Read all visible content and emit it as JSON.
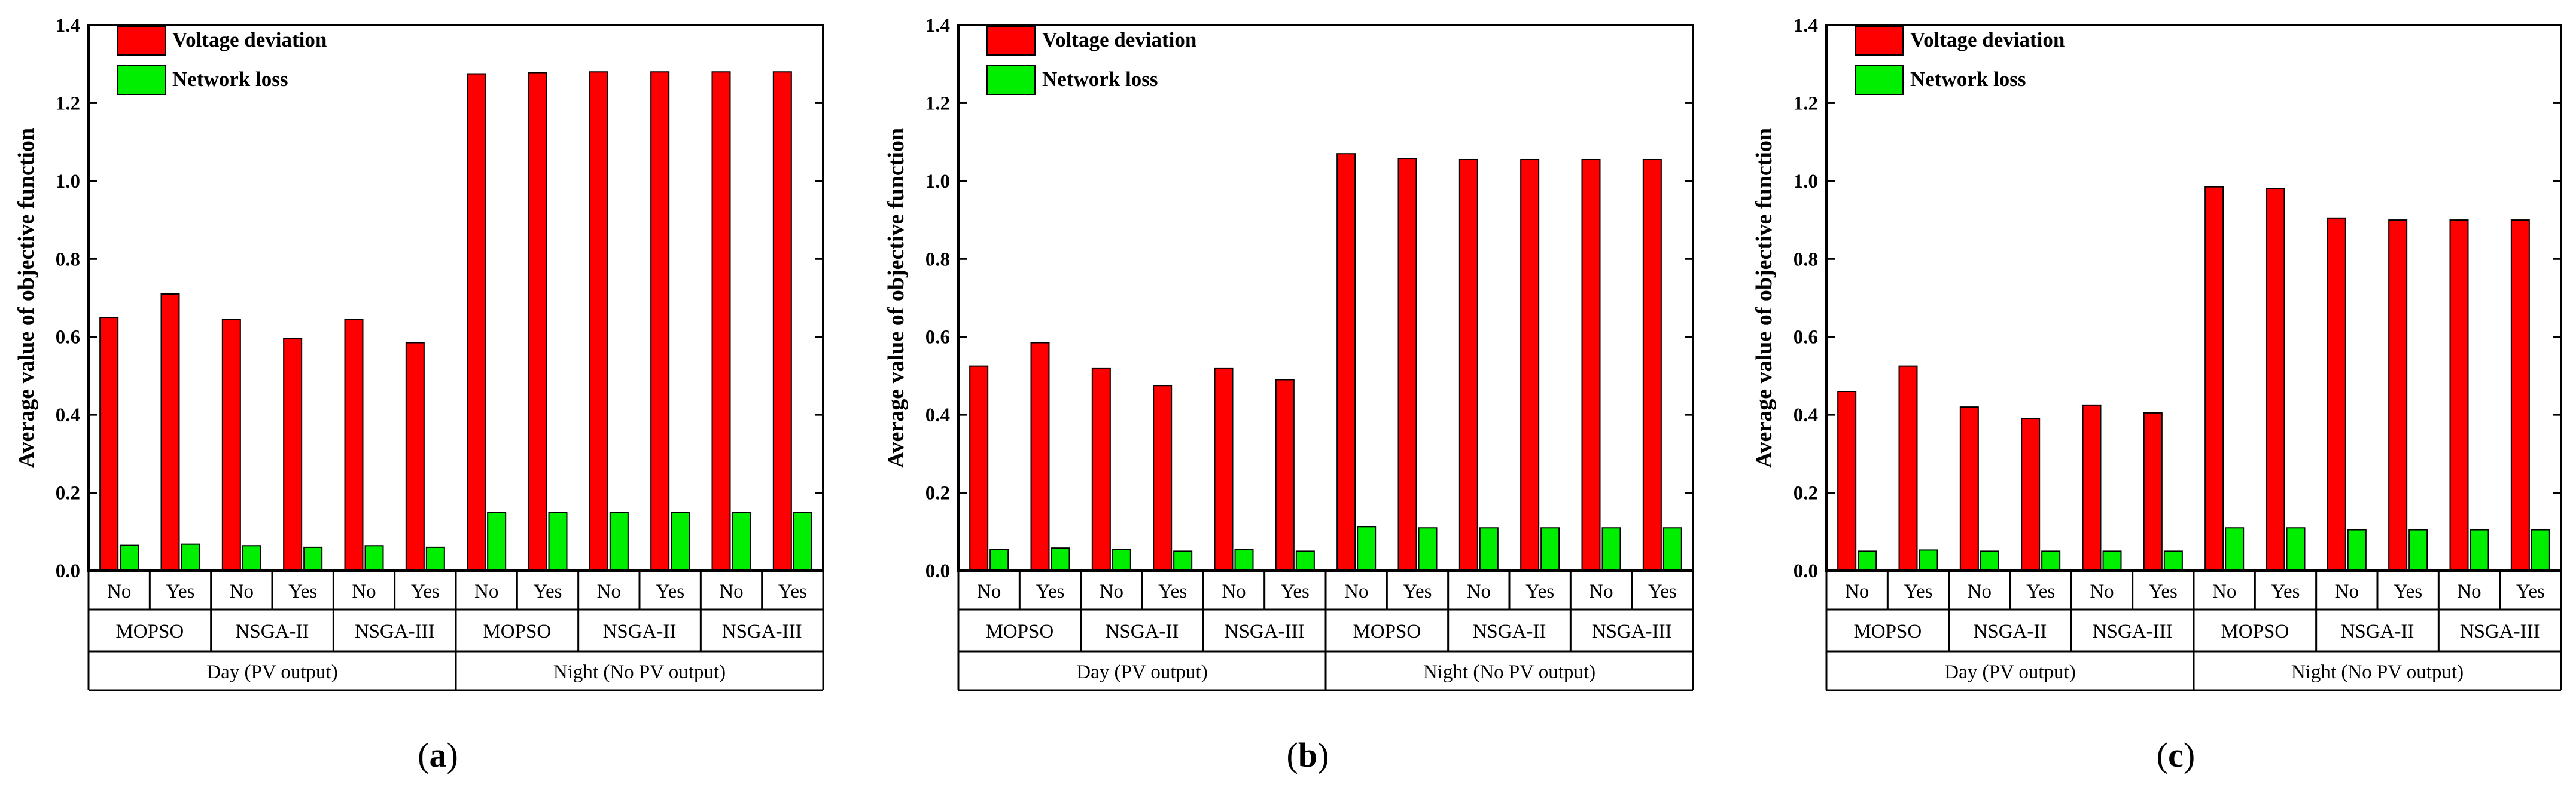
{
  "chart_data": [
    {
      "panel": "a",
      "type": "bar",
      "caption": "a",
      "ylabel": "Average value of objective function",
      "ylim": [
        0,
        1.4
      ],
      "yticks": [
        "0.0",
        "0.2",
        "0.4",
        "0.6",
        "0.8",
        "1.0",
        "1.2",
        "1.4"
      ],
      "categories_level1": [
        "No",
        "Yes",
        "No",
        "Yes",
        "No",
        "Yes",
        "No",
        "Yes",
        "No",
        "Yes",
        "No",
        "Yes"
      ],
      "categories_level2": [
        "MOPSO",
        "NSGA-II",
        "NSGA-III",
        "MOPSO",
        "NSGA-II",
        "NSGA-III"
      ],
      "categories_level3": [
        "Day (PV output)",
        "Night (No PV output)"
      ],
      "series": [
        {
          "name": "Voltage deviation",
          "color": "#ff0000",
          "values": [
            0.65,
            0.71,
            0.645,
            0.595,
            0.645,
            0.585,
            1.275,
            1.278,
            1.28,
            1.28,
            1.28,
            1.28
          ]
        },
        {
          "name": "Network loss",
          "color": "#00ee00",
          "values": [
            0.065,
            0.068,
            0.064,
            0.06,
            0.064,
            0.06,
            0.15,
            0.15,
            0.15,
            0.15,
            0.15,
            0.15
          ]
        }
      ]
    },
    {
      "panel": "b",
      "type": "bar",
      "caption": "b",
      "ylabel": "Average value of objective function",
      "ylim": [
        0,
        1.4
      ],
      "yticks": [
        "0.0",
        "0.2",
        "0.4",
        "0.6",
        "0.8",
        "1.0",
        "1.2",
        "1.4"
      ],
      "categories_level1": [
        "No",
        "Yes",
        "No",
        "Yes",
        "No",
        "Yes",
        "No",
        "Yes",
        "No",
        "Yes",
        "No",
        "Yes"
      ],
      "categories_level2": [
        "MOPSO",
        "NSGA-II",
        "NSGA-III",
        "MOPSO",
        "NSGA-II",
        "NSGA-III"
      ],
      "categories_level3": [
        "Day (PV output)",
        "Night (No PV output)"
      ],
      "series": [
        {
          "name": "Voltage deviation",
          "color": "#ff0000",
          "values": [
            0.525,
            0.585,
            0.52,
            0.475,
            0.52,
            0.49,
            1.07,
            1.058,
            1.055,
            1.055,
            1.055,
            1.055
          ]
        },
        {
          "name": "Network loss",
          "color": "#00ee00",
          "values": [
            0.055,
            0.058,
            0.055,
            0.05,
            0.055,
            0.05,
            0.113,
            0.11,
            0.11,
            0.11,
            0.11,
            0.11
          ]
        }
      ]
    },
    {
      "panel": "c",
      "type": "bar",
      "caption": "c",
      "ylabel": "Average value of objective function",
      "ylim": [
        0,
        1.4
      ],
      "yticks": [
        "0.0",
        "0.2",
        "0.4",
        "0.6",
        "0.8",
        "1.0",
        "1.2",
        "1.4"
      ],
      "categories_level1": [
        "No",
        "Yes",
        "No",
        "Yes",
        "No",
        "Yes",
        "No",
        "Yes",
        "No",
        "Yes",
        "No",
        "Yes"
      ],
      "categories_level2": [
        "MOPSO",
        "NSGA-II",
        "NSGA-III",
        "MOPSO",
        "NSGA-II",
        "NSGA-III"
      ],
      "categories_level3": [
        "Day (PV output)",
        "Night (No PV output)"
      ],
      "series": [
        {
          "name": "Voltage deviation",
          "color": "#ff0000",
          "values": [
            0.46,
            0.525,
            0.42,
            0.39,
            0.425,
            0.405,
            0.985,
            0.98,
            0.905,
            0.9,
            0.9,
            0.9
          ]
        },
        {
          "name": "Network loss",
          "color": "#00ee00",
          "values": [
            0.05,
            0.053,
            0.05,
            0.05,
            0.05,
            0.05,
            0.11,
            0.11,
            0.105,
            0.105,
            0.105,
            0.105
          ]
        }
      ]
    }
  ]
}
